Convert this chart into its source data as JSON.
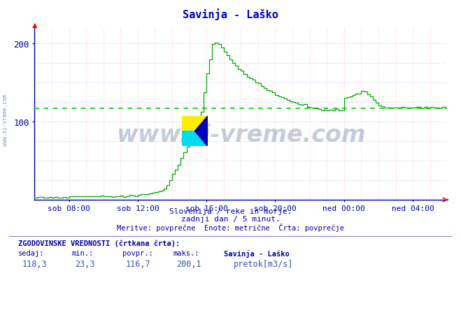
{
  "title": "Savinja - Laško",
  "title_color": "#0000cc",
  "bg_color": "#ffffff",
  "plot_bg_color": "#ffffff",
  "grid_color_v": "#ffbbbb",
  "grid_color_h": "#bbbbff",
  "axis_color": "#0000aa",
  "xlabel_ticks": [
    "sob 08:00",
    "sob 12:00",
    "sob 16:00",
    "sob 20:00",
    "ned 00:00",
    "ned 04:00"
  ],
  "ylim": [
    0,
    220
  ],
  "yticks": [
    100,
    200
  ],
  "avg_value": 116.7,
  "line_color": "#00aa00",
  "avg_line_color": "#00cc00",
  "watermark": "www.si-vreme.com",
  "watermark_color": "#1a3a6e",
  "watermark_alpha": 0.25,
  "sidebar_text": "www.si-vreme.com",
  "sidebar_color": "#4466aa",
  "subtitle1": "Slovenija / reke in morje.",
  "subtitle2": "zadnji dan / 5 minut.",
  "subtitle3": "Meritve: povprečne  Enote: metrične  Črta: povprečje",
  "footer_label1": "ZGODOVINSKE VREDNOSTI (črtkana črta):",
  "footer_col1_label": "sedaj:",
  "footer_col2_label": "min.:",
  "footer_col3_label": "povpr.:",
  "footer_col4_label": "maks.:",
  "footer_col5_label": "Savinja - Laško",
  "footer_col1_val": "118,3",
  "footer_col2_val": "23,3",
  "footer_col3_val": "116,7",
  "footer_col4_val": "200,1",
  "footer_legend": "pretok[m3/s]",
  "logo_yellow": "#ffee00",
  "logo_cyan": "#00ddee",
  "logo_blue": "#0000bb",
  "n_points": 288,
  "tick_indices": [
    24,
    72,
    120,
    168,
    216,
    264
  ]
}
